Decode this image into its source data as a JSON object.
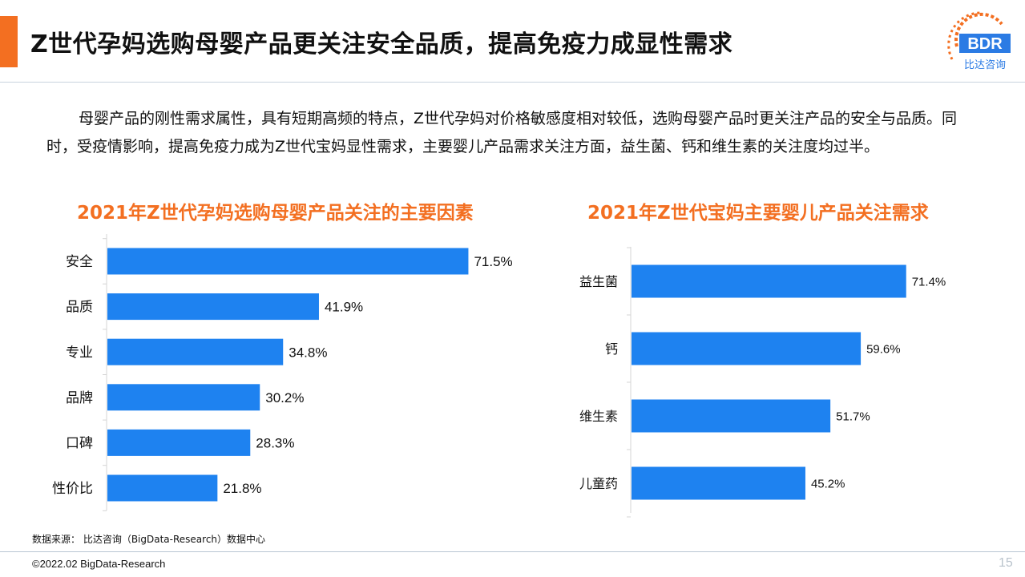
{
  "header": {
    "title": "Z世代孕妈选购母婴产品更关注安全品质，提高免疫力成显性需求",
    "logo_text": "BDR",
    "logo_subtext": "比达咨询"
  },
  "colors": {
    "accent": "#F36F21",
    "bar": "#1E82F0",
    "logo_blue": "#2B7BE4"
  },
  "intro": "母婴产品的刚性需求属性，具有短期高频的特点，Z世代孕妈对价格敏感度相对较低，选购母婴产品时更关注产品的安全与品质。同时，受疫情影响，提高免疫力成为Z世代宝妈显性需求，主要婴儿产品需求关注方面，益生菌、钙和维生素的关注度均过半。",
  "chart_data": [
    {
      "type": "bar",
      "orientation": "horizontal",
      "title": "2021年Z世代孕妈选购母婴产品关注的主要因素",
      "categories": [
        "安全",
        "品质",
        "专业",
        "品牌",
        "口碑",
        "性价比"
      ],
      "values": [
        71.5,
        41.9,
        34.8,
        30.2,
        28.3,
        21.8
      ],
      "labels": [
        "71.5%",
        "41.9%",
        "34.8%",
        "30.2%",
        "28.3%",
        "21.8%"
      ],
      "unit": "%",
      "xlim": [
        0,
        100
      ]
    },
    {
      "type": "bar",
      "orientation": "horizontal",
      "title": "2021年Z世代宝妈主要婴儿产品关注需求",
      "categories": [
        "益生菌",
        "钙",
        "维生素",
        "儿童药"
      ],
      "values": [
        71.4,
        59.6,
        51.7,
        45.2
      ],
      "labels": [
        "71.4%",
        "59.6%",
        "51.7%",
        "45.2%"
      ],
      "unit": "%",
      "xlim": [
        0,
        100
      ]
    }
  ],
  "footer": {
    "source": "数据来源： 比达咨询（BigData-Research）数据中心",
    "copyright": "©2022.02 BigData-Research",
    "page_number": "15"
  }
}
